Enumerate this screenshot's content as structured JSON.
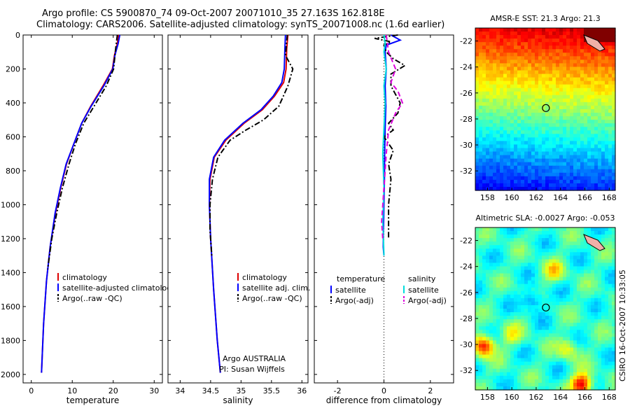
{
  "header": {
    "line1": "Argo profile: CS 5900870_74 09-Oct-2007 20071010_35 27.163S 162.818E",
    "line2": "Climatology: CARS2006. Satellite-adjusted climatology: synTS_20071008.nc (1.6d earlier)"
  },
  "footer": {
    "operator": "Argo AUSTRALIA",
    "pi": "PI: Susan Wijffels",
    "stamp": "CSIRO 16-Oct-2007 10:33:05"
  },
  "colors": {
    "climatology": "#dd0000",
    "satellite": "#0000ff",
    "argo": "#000000",
    "sal_satellite": "#00dddd",
    "sal_argo": "#dd00dd"
  },
  "chart_data": [
    {
      "type": "line",
      "id": "temperature",
      "xlabel": "temperature",
      "ylabel": "",
      "xlim": [
        -2,
        32
      ],
      "ylim": [
        2050,
        0
      ],
      "xticks": [
        "0",
        "10",
        "20",
        "30"
      ],
      "xtick_values": [
        0,
        10,
        20,
        30
      ],
      "yticks": [
        "0",
        "200",
        "400",
        "600",
        "800",
        "1000",
        "1200",
        "1400",
        "1600",
        "1800",
        "2000"
      ],
      "ytick_values": [
        0,
        200,
        400,
        600,
        800,
        1000,
        1200,
        1400,
        1600,
        1800,
        2000
      ],
      "legend": [
        "climatology",
        "satellite-adjusted climatology",
        "Argo(..raw -QC)"
      ],
      "series": [
        {
          "name": "climatology",
          "style": "solid",
          "color_key": "climatology",
          "x": [
            21.3,
            21.0,
            20.3,
            19.8,
            17.5,
            14.5,
            12.3,
            10.4,
            8.6,
            7.2,
            5.9,
            4.6,
            3.7,
            3.0,
            2.5
          ],
          "y": [
            0,
            50,
            120,
            200,
            300,
            420,
            520,
            640,
            760,
            900,
            1050,
            1250,
            1450,
            1700,
            1990
          ]
        },
        {
          "name": "satellite-adjusted climatology",
          "style": "solid",
          "color_key": "satellite",
          "x": [
            21.6,
            21.2,
            20.4,
            19.9,
            17.7,
            14.6,
            12.3,
            10.4,
            8.5,
            7.1,
            5.8,
            4.6,
            3.7,
            3.0,
            2.5
          ],
          "y": [
            0,
            50,
            120,
            200,
            300,
            420,
            520,
            640,
            760,
            900,
            1050,
            1250,
            1450,
            1700,
            1990
          ]
        },
        {
          "name": "Argo(..raw -QC)",
          "style": "dashdot",
          "color_key": "argo",
          "x": [
            21.0,
            20.8,
            20.5,
            20.1,
            18.3,
            15.3,
            12.8,
            10.8,
            9.2,
            7.6,
            6.2,
            5.0,
            4.0
          ],
          "y": [
            0,
            40,
            100,
            200,
            300,
            420,
            520,
            640,
            760,
            900,
            1050,
            1200,
            1380
          ]
        }
      ]
    },
    {
      "type": "line",
      "id": "salinity",
      "xlabel": "salinity",
      "xlim": [
        33.8,
        36.1
      ],
      "ylim": [
        2050,
        0
      ],
      "xticks": [
        "34",
        "34.5",
        "35",
        "35.5",
        "36"
      ],
      "xtick_values": [
        34,
        34.5,
        35,
        35.5,
        36
      ],
      "legend": [
        "climatology",
        "satellite adj. clim.",
        "Argo(..raw -QC)"
      ],
      "series": [
        {
          "name": "climatology",
          "style": "solid",
          "color_key": "climatology",
          "x": [
            35.77,
            35.75,
            35.74,
            35.7,
            35.55,
            35.35,
            35.05,
            34.75,
            34.56,
            34.49,
            34.48,
            34.5,
            34.55,
            34.61,
            34.66
          ],
          "y": [
            0,
            80,
            200,
            280,
            360,
            440,
            520,
            620,
            720,
            850,
            1000,
            1200,
            1500,
            1800,
            1990
          ]
        },
        {
          "name": "satellite adj. clim.",
          "style": "solid",
          "color_key": "satellite",
          "x": [
            35.73,
            35.72,
            35.71,
            35.67,
            35.53,
            35.33,
            35.03,
            34.73,
            34.55,
            34.48,
            34.48,
            34.5,
            34.55,
            34.61,
            34.66
          ],
          "y": [
            0,
            80,
            200,
            280,
            360,
            440,
            520,
            620,
            720,
            850,
            1000,
            1200,
            1500,
            1800,
            1990
          ]
        },
        {
          "name": "Argo(..raw -QC)",
          "style": "dashdot",
          "color_key": "argo",
          "x": [
            35.76,
            35.73,
            35.85,
            35.77,
            35.62,
            35.37,
            35.08,
            34.82,
            34.62,
            34.53,
            34.49,
            34.49,
            34.52
          ],
          "y": [
            0,
            120,
            200,
            300,
            420,
            500,
            560,
            620,
            720,
            850,
            1000,
            1150,
            1300
          ]
        }
      ]
    },
    {
      "type": "line",
      "id": "difference",
      "xlabel": "difference from climatology",
      "xlim": [
        -3,
        3
      ],
      "ylim": [
        2050,
        0
      ],
      "xticks": [
        "-2",
        "0",
        "2"
      ],
      "xtick_values": [
        -2,
        0,
        2
      ],
      "legend_headers": [
        "temperature",
        "salinity"
      ],
      "legend": [
        "satellite",
        "Argo(-adj)",
        "satellite",
        "Argo(-adj)"
      ],
      "series": [
        {
          "name": "temperature satellite",
          "style": "solid",
          "color_key": "satellite",
          "x": [
            0.3,
            0.7,
            0.1,
            0.05,
            0.1,
            0.05,
            0.08,
            0.05,
            0.03,
            0.02,
            0.0,
            -0.02,
            -0.03,
            0.0
          ],
          "y": [
            0,
            30,
            60,
            100,
            200,
            300,
            420,
            550,
            700,
            850,
            1000,
            1150,
            1250,
            1300
          ]
        },
        {
          "name": "temperature Argo(-adj)",
          "style": "dashdot",
          "color_key": "argo",
          "x": [
            0.6,
            -0.4,
            0.3,
            0.0,
            0.1,
            0.4,
            0.9,
            0.3,
            0.3,
            0.5,
            0.7,
            0.6,
            0.2,
            0.4,
            0.0,
            0.4,
            0.2,
            0.3,
            0.2,
            0.2
          ],
          "y": [
            0,
            20,
            40,
            60,
            100,
            140,
            180,
            230,
            300,
            350,
            400,
            460,
            520,
            560,
            600,
            680,
            760,
            850,
            1000,
            1200
          ]
        },
        {
          "name": "salinity satellite",
          "style": "solid",
          "color_key": "sal_satellite",
          "x": [
            0.0,
            0.05,
            0.0,
            0.1,
            0.0,
            0.05,
            0.0,
            -0.05,
            0.0,
            -0.05,
            -0.02,
            0.0
          ],
          "y": [
            0,
            50,
            100,
            200,
            300,
            400,
            550,
            700,
            900,
            1100,
            1200,
            1300
          ]
        },
        {
          "name": "salinity Argo(-adj)",
          "style": "dashed",
          "color_key": "sal_argo",
          "x": [
            0.1,
            0.2,
            0.5,
            0.3,
            0.6,
            0.8,
            0.5,
            0.2,
            0.1,
            0.0,
            -0.1,
            -0.05
          ],
          "y": [
            0,
            100,
            200,
            280,
            330,
            400,
            460,
            560,
            700,
            900,
            1100,
            1200
          ]
        }
      ]
    },
    {
      "type": "heatmap",
      "id": "sst_map",
      "title": "AMSR-E SST: 21.3  Argo: 21.3",
      "xlim": [
        157,
        168.5
      ],
      "ylim": [
        -33.5,
        -21
      ],
      "xticks": [
        "158",
        "160",
        "162",
        "164",
        "166",
        "168"
      ],
      "xtick_values": [
        158,
        160,
        162,
        164,
        166,
        168
      ],
      "yticks": [
        "-22",
        "-24",
        "-26",
        "-28",
        "-30",
        "-32"
      ],
      "ytick_values": [
        -22,
        -24,
        -26,
        -28,
        -30,
        -32
      ],
      "marker": {
        "lon": 162.8,
        "lat": -27.16
      },
      "field": "SST, warm (~26) in north to cool (~19) in south"
    },
    {
      "type": "heatmap",
      "id": "sla_map",
      "title": "Altimetric SLA: -0.0027  Argo: -0.053",
      "xlim": [
        157,
        168.5
      ],
      "ylim": [
        -33.5,
        -21
      ],
      "xticks": [
        "158",
        "160",
        "162",
        "164",
        "166",
        "168"
      ],
      "xtick_values": [
        158,
        160,
        162,
        164,
        166,
        168
      ],
      "yticks": [
        "-22",
        "-24",
        "-26",
        "-28",
        "-30",
        "-32"
      ],
      "ytick_values": [
        -22,
        -24,
        -26,
        -28,
        -30,
        -32
      ],
      "marker": {
        "lon": 162.8,
        "lat": -27.16
      },
      "field": "sea level anomaly, mostly near zero with scattered eddies"
    }
  ]
}
